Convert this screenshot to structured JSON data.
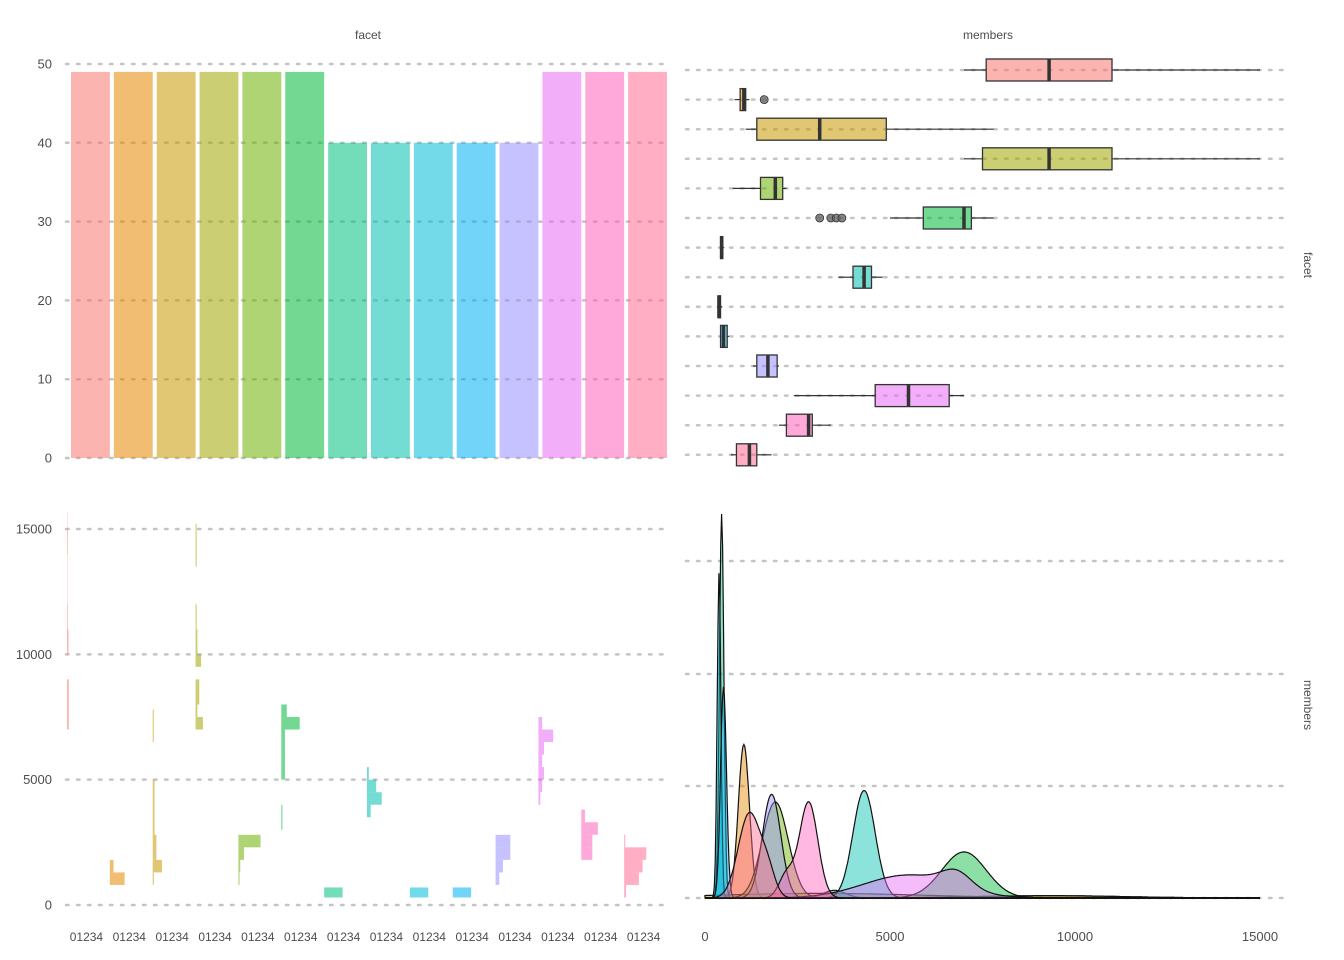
{
  "strip_titles": {
    "top": "facet",
    "right": "members"
  },
  "chart_data": [
    {
      "panel": "top-left",
      "type": "bar",
      "ylim": [
        0,
        50
      ],
      "yticks": [
        "0",
        "10",
        "20",
        "30",
        "40",
        "50"
      ],
      "grid": "dotted-horizontal",
      "values": [
        49,
        49,
        49,
        49,
        49,
        49,
        40,
        40,
        40,
        40,
        40,
        49,
        49,
        49
      ],
      "colors": [
        "#F8766D",
        "#E58700",
        "#C99800",
        "#A3A500",
        "#6BB100",
        "#00BA38",
        "#00BF7D",
        "#00C0AF",
        "#00BCD8",
        "#00B0F6",
        "#9590FF",
        "#E76BF3",
        "#FF62BC",
        "#FF6C91"
      ]
    },
    {
      "panel": "top-right",
      "type": "box",
      "xlim": [
        0,
        15000
      ],
      "grid": "dotted-horizontal",
      "boxes": [
        {
          "color": "#F8766D",
          "whislo": 7000,
          "q1": 7600,
          "med": 9300,
          "q3": 11000,
          "whishi": 15000,
          "outliers": []
        },
        {
          "color": "#E58700",
          "whislo": 800,
          "q1": 950,
          "med": 1050,
          "q3": 1100,
          "whishi": 1200,
          "outliers": [
            1600
          ]
        },
        {
          "color": "#C99800",
          "whislo": 1100,
          "q1": 1400,
          "med": 3100,
          "q3": 4900,
          "whishi": 7800,
          "outliers": []
        },
        {
          "color": "#A3A500",
          "whislo": 7000,
          "q1": 7500,
          "med": 9300,
          "q3": 11000,
          "whishi": 15000,
          "outliers": []
        },
        {
          "color": "#6BB100",
          "whislo": 750,
          "q1": 1500,
          "med": 1900,
          "q3": 2100,
          "whishi": 2200,
          "outliers": []
        },
        {
          "color": "#00BA38",
          "whislo": 5000,
          "q1": 5900,
          "med": 7000,
          "q3": 7200,
          "whishi": 7800,
          "outliers": [
            3100,
            3400,
            3550,
            3700
          ]
        },
        {
          "color": "#00BF7D",
          "whislo": 400,
          "q1": 420,
          "med": 450,
          "q3": 480,
          "whishi": 520,
          "outliers": []
        },
        {
          "color": "#00C0AF",
          "whislo": 3600,
          "q1": 4000,
          "med": 4300,
          "q3": 4500,
          "whishi": 4800,
          "outliers": []
        },
        {
          "color": "#00BCD8",
          "whislo": 320,
          "q1": 350,
          "med": 380,
          "q3": 420,
          "whishi": 460,
          "outliers": []
        },
        {
          "color": "#00B0F6",
          "whislo": 400,
          "q1": 420,
          "med": 500,
          "q3": 600,
          "whishi": 650,
          "outliers": []
        },
        {
          "color": "#9590FF",
          "whislo": 1300,
          "q1": 1400,
          "med": 1700,
          "q3": 1950,
          "whishi": 2000,
          "outliers": []
        },
        {
          "color": "#E76BF3",
          "whislo": 2400,
          "q1": 4600,
          "med": 5500,
          "q3": 6600,
          "whishi": 7000,
          "outliers": []
        },
        {
          "color": "#FF62BC",
          "whislo": 2000,
          "q1": 2200,
          "med": 2800,
          "q3": 2900,
          "whishi": 3400,
          "outliers": []
        },
        {
          "color": "#FF6C91",
          "whislo": 700,
          "q1": 850,
          "med": 1200,
          "q3": 1400,
          "whishi": 1800,
          "outliers": []
        }
      ]
    },
    {
      "panel": "bottom-left",
      "type": "histogram",
      "ylim": [
        0,
        15000
      ],
      "yticks": [
        "0",
        "5000",
        "10000",
        "15000"
      ],
      "xtick_label": "01234",
      "grid": "dotted-horizontal",
      "facets": [
        {
          "color": "#F8766D",
          "bins": [
            [
              7000,
              8000,
              0.5
            ],
            [
              8000,
              9000,
              0.5
            ],
            [
              10000,
              11000,
              0.4
            ],
            [
              11000,
              12000,
              0.2
            ],
            [
              12000,
              13000,
              0.1
            ],
            [
              13000,
              14000,
              0.1
            ],
            [
              14000,
              15000,
              0.2
            ],
            [
              15000,
              15700,
              0.1
            ]
          ]
        },
        {
          "color": "#E58700",
          "bins": [
            [
              800,
              1300,
              4
            ],
            [
              1300,
              1800,
              1
            ]
          ]
        },
        {
          "color": "#C99800",
          "bins": [
            [
              800,
              1300,
              0.3
            ],
            [
              1300,
              1800,
              2.5
            ],
            [
              1800,
              2800,
              1
            ],
            [
              2800,
              5000,
              0.5
            ],
            [
              6500,
              7800,
              0.3
            ]
          ]
        },
        {
          "color": "#A3A500",
          "bins": [
            [
              7000,
              7500,
              2
            ],
            [
              7500,
              8000,
              0.5
            ],
            [
              8000,
              9000,
              1
            ],
            [
              9500,
              10000,
              1.5
            ],
            [
              10000,
              11000,
              0.5
            ],
            [
              11000,
              12000,
              0.3
            ],
            [
              13500,
              15200,
              0.3
            ]
          ]
        },
        {
          "color": "#6BB100",
          "bins": [
            [
              800,
              1300,
              0.3
            ],
            [
              1300,
              1800,
              0.5
            ],
            [
              1800,
              2300,
              1.5
            ],
            [
              2300,
              2800,
              6
            ]
          ]
        },
        {
          "color": "#00BA38",
          "bins": [
            [
              3000,
              3500,
              0.3
            ],
            [
              3500,
              4000,
              0.3
            ],
            [
              5000,
              6000,
              1
            ],
            [
              6000,
              7000,
              1
            ],
            [
              7000,
              7500,
              5
            ],
            [
              7500,
              8000,
              1.5
            ]
          ]
        },
        {
          "color": "#00BF7D",
          "bins": [
            [
              300,
              700,
              5
            ]
          ]
        },
        {
          "color": "#00C0AF",
          "bins": [
            [
              3500,
              4000,
              1
            ],
            [
              4000,
              4500,
              4
            ],
            [
              4500,
              5000,
              2.5
            ],
            [
              5000,
              5500,
              0.5
            ]
          ]
        },
        {
          "color": "#00BCD8",
          "bins": [
            [
              300,
              700,
              5
            ]
          ]
        },
        {
          "color": "#00B0F6",
          "bins": [
            [
              300,
              700,
              5
            ]
          ]
        },
        {
          "color": "#9590FF",
          "bins": [
            [
              800,
              1300,
              1
            ],
            [
              1300,
              1800,
              2
            ],
            [
              1800,
              2300,
              4
            ],
            [
              2300,
              2800,
              4
            ]
          ]
        },
        {
          "color": "#E76BF3",
          "bins": [
            [
              4000,
              4500,
              0.5
            ],
            [
              4500,
              5000,
              1
            ],
            [
              5000,
              5500,
              1.5
            ],
            [
              5500,
              6000,
              1
            ],
            [
              6000,
              6500,
              1.5
            ],
            [
              6500,
              7000,
              4
            ],
            [
              7000,
              7500,
              1
            ]
          ]
        },
        {
          "color": "#FF62BC",
          "bins": [
            [
              1800,
              2300,
              3
            ],
            [
              2300,
              2800,
              3
            ],
            [
              2800,
              3300,
              4.5
            ],
            [
              3300,
              3800,
              1
            ]
          ]
        },
        {
          "color": "#FF6C91",
          "bins": [
            [
              300,
              800,
              0.5
            ],
            [
              800,
              1300,
              4
            ],
            [
              1300,
              1800,
              5
            ],
            [
              1800,
              2300,
              6
            ],
            [
              2300,
              2800,
              0.3
            ]
          ]
        }
      ]
    },
    {
      "panel": "bottom-right",
      "type": "density",
      "xlim": [
        0,
        15000
      ],
      "xticks": [
        "0",
        "5000",
        "10000",
        "15000"
      ],
      "grid": "dotted-horizontal",
      "series": [
        {
          "color": "#F8766D",
          "peaks": [
            [
              9300,
              0.006,
              2000
            ]
          ]
        },
        {
          "color": "#E58700",
          "peaks": [
            [
              1050,
              0.4,
              150
            ]
          ]
        },
        {
          "color": "#C99800",
          "peaks": [
            [
              3100,
              0.012,
              2800
            ]
          ]
        },
        {
          "color": "#A3A500",
          "peaks": [
            [
              9300,
              0.006,
              2000
            ]
          ]
        },
        {
          "color": "#6BB100",
          "peaks": [
            [
              1900,
              0.25,
              350
            ]
          ]
        },
        {
          "color": "#00BA38",
          "peaks": [
            [
              7000,
              0.12,
              600
            ],
            [
              3500,
              0.02,
              300
            ]
          ]
        },
        {
          "color": "#00BF7D",
          "peaks": [
            [
              450,
              1.0,
              60
            ]
          ]
        },
        {
          "color": "#00C0AF",
          "peaks": [
            [
              4300,
              0.28,
              300
            ]
          ]
        },
        {
          "color": "#00BCD8",
          "peaks": [
            [
              380,
              0.85,
              50
            ]
          ]
        },
        {
          "color": "#00B0F6",
          "peaks": [
            [
              500,
              0.55,
              80
            ]
          ]
        },
        {
          "color": "#9590FF",
          "peaks": [
            [
              1800,
              0.27,
              250
            ]
          ]
        },
        {
          "color": "#E76BF3",
          "peaks": [
            [
              5500,
              0.06,
              1200
            ],
            [
              6800,
              0.04,
              400
            ]
          ]
        },
        {
          "color": "#FF62BC",
          "peaks": [
            [
              2800,
              0.25,
              250
            ],
            [
              2200,
              0.06,
              200
            ]
          ]
        },
        {
          "color": "#FF6C91",
          "peaks": [
            [
              1200,
              0.22,
              300
            ],
            [
              1700,
              0.06,
              200
            ]
          ]
        }
      ]
    }
  ]
}
